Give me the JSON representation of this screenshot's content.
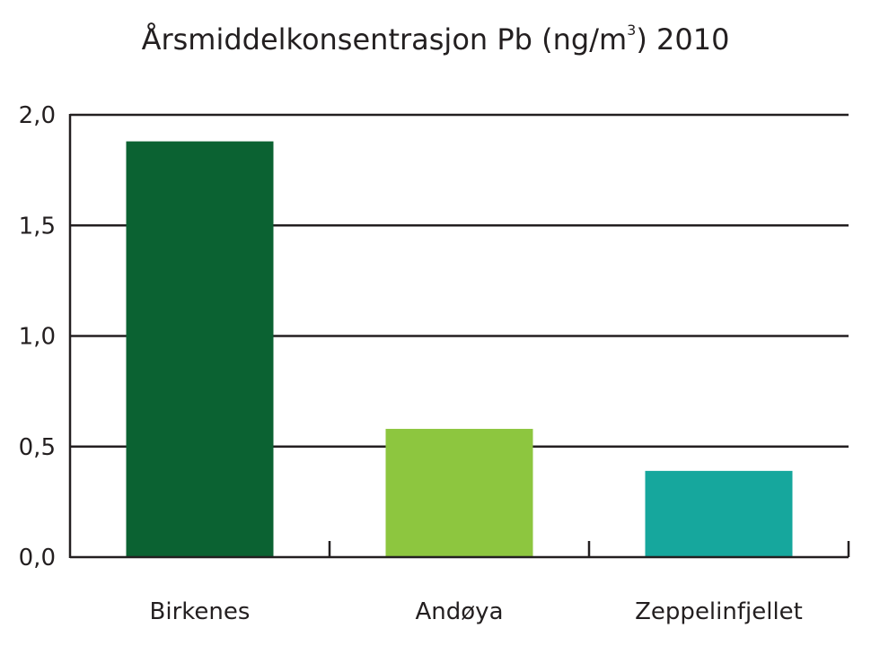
{
  "chart_data": {
    "type": "bar",
    "title_main": "Årsmiddelkonsentrasjon Pb (ng/m",
    "title_sup": "3",
    "title_end": ") 2010",
    "categories": [
      "Birkenes",
      "Andøya",
      "Zeppelinfjellet"
    ],
    "values": [
      1.88,
      0.58,
      0.39
    ],
    "colors": [
      "#0b6232",
      "#8dc63f",
      "#16a79d"
    ],
    "ylim": [
      0,
      2
    ],
    "yticks": [
      0,
      0.5,
      1.0,
      1.5,
      2.0
    ],
    "ytick_labels": [
      "0,0",
      "0,5",
      "1,0",
      "1,5",
      "2,0"
    ],
    "grid": true,
    "xlabel": "",
    "ylabel": ""
  }
}
